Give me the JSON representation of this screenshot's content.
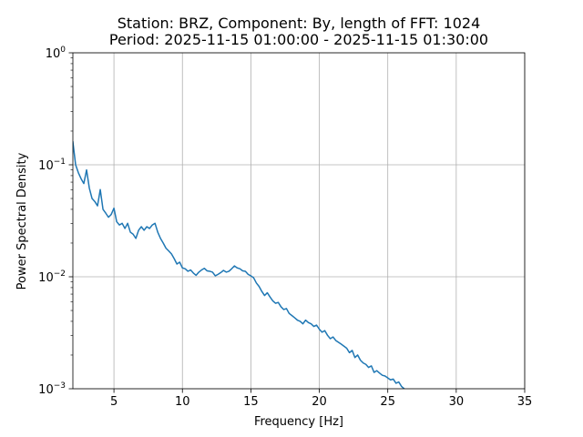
{
  "chart_data": {
    "type": "line",
    "title": "Station: BRZ, Component: By, length of FFT: 1024\nPeriod: 2025-11-15 01:00:00 - 2025-11-15 01:30:00",
    "title_lines": [
      "Station: BRZ, Component: By, length of FFT: 1024",
      "Period: 2025-11-15 01:00:00 - 2025-11-15 01:30:00"
    ],
    "xlabel": "Frequency [Hz]",
    "ylabel": "Power Spectral Density",
    "xlim": [
      2,
      35
    ],
    "ylim": [
      0.001,
      1
    ],
    "yscale": "log",
    "grid": true,
    "line_color": "#1f77b4",
    "x_ticks": [
      {
        "value": 5,
        "label": "5"
      },
      {
        "value": 10,
        "label": "10"
      },
      {
        "value": 15,
        "label": "15"
      },
      {
        "value": 20,
        "label": "20"
      },
      {
        "value": 25,
        "label": "25"
      },
      {
        "value": 30,
        "label": "30"
      },
      {
        "value": 35,
        "label": "35"
      }
    ],
    "y_ticks": [
      {
        "value": 0.001,
        "base": "10",
        "exp": "−3"
      },
      {
        "value": 0.01,
        "base": "10",
        "exp": "−2"
      },
      {
        "value": 0.1,
        "base": "10",
        "exp": "−1"
      },
      {
        "value": 1,
        "base": "10",
        "exp": "0"
      }
    ],
    "series": [
      {
        "x": [
          2.0,
          2.2,
          2.4,
          2.6,
          2.8,
          3.0,
          3.2,
          3.4,
          3.6,
          3.8,
          4.0,
          4.2,
          4.4,
          4.6,
          4.8,
          5.0,
          5.2,
          5.4,
          5.6,
          5.8,
          6.0,
          6.2,
          6.4,
          6.6,
          6.8,
          7.0,
          7.2,
          7.4,
          7.6,
          7.8,
          8.0,
          8.2,
          8.4,
          8.6,
          8.8,
          9.0,
          9.2,
          9.4,
          9.6,
          9.8,
          10.0,
          10.2,
          10.4,
          10.6,
          10.8,
          11.0,
          11.2,
          11.4,
          11.6,
          11.8,
          12.0,
          12.2,
          12.4,
          12.6,
          12.8,
          13.0,
          13.2,
          13.4,
          13.6,
          13.8,
          14.0,
          14.2,
          14.4,
          14.6,
          14.8,
          15.0,
          15.2,
          15.4,
          15.6,
          15.8,
          16.0,
          16.2,
          16.4,
          16.6,
          16.8,
          17.0,
          17.2,
          17.4,
          17.6,
          17.8,
          18.0,
          18.2,
          18.4,
          18.6,
          18.8,
          19.0,
          19.2,
          19.4,
          19.6,
          19.8,
          20.0,
          20.2,
          20.4,
          20.6,
          20.8,
          21.0,
          21.2,
          21.4,
          21.6,
          21.8,
          22.0,
          22.2,
          22.4,
          22.6,
          22.8,
          23.0,
          23.2,
          23.4,
          23.6,
          23.8,
          24.0,
          24.2,
          24.4,
          24.6,
          24.8,
          25.0,
          25.2,
          25.4,
          25.6,
          25.8,
          26.0,
          26.2
        ],
        "y": [
          0.16,
          0.1,
          0.085,
          0.075,
          0.068,
          0.09,
          0.062,
          0.05,
          0.047,
          0.043,
          0.06,
          0.04,
          0.037,
          0.034,
          0.036,
          0.041,
          0.031,
          0.029,
          0.03,
          0.027,
          0.03,
          0.025,
          0.024,
          0.022,
          0.026,
          0.028,
          0.026,
          0.028,
          0.027,
          0.029,
          0.03,
          0.025,
          0.022,
          0.02,
          0.018,
          0.017,
          0.016,
          0.0145,
          0.013,
          0.0135,
          0.012,
          0.0118,
          0.0112,
          0.0115,
          0.0108,
          0.0103,
          0.011,
          0.0115,
          0.0119,
          0.0113,
          0.0112,
          0.011,
          0.0102,
          0.0105,
          0.0109,
          0.0114,
          0.011,
          0.0112,
          0.0118,
          0.0125,
          0.012,
          0.0118,
          0.0113,
          0.0112,
          0.0105,
          0.0102,
          0.0098,
          0.0088,
          0.0082,
          0.0074,
          0.0068,
          0.0072,
          0.0066,
          0.0061,
          0.0058,
          0.0059,
          0.0054,
          0.0051,
          0.0052,
          0.0047,
          0.0045,
          0.0043,
          0.0041,
          0.004,
          0.0038,
          0.0041,
          0.0039,
          0.0038,
          0.0036,
          0.0037,
          0.0034,
          0.0032,
          0.0033,
          0.003,
          0.0028,
          0.0029,
          0.0027,
          0.0026,
          0.0025,
          0.0024,
          0.0023,
          0.0021,
          0.0022,
          0.0019,
          0.002,
          0.0018,
          0.0017,
          0.00165,
          0.00155,
          0.0016,
          0.0014,
          0.00145,
          0.00138,
          0.00132,
          0.0013,
          0.00125,
          0.0012,
          0.00122,
          0.00112,
          0.00115,
          0.00105,
          0.001
        ]
      }
    ]
  }
}
